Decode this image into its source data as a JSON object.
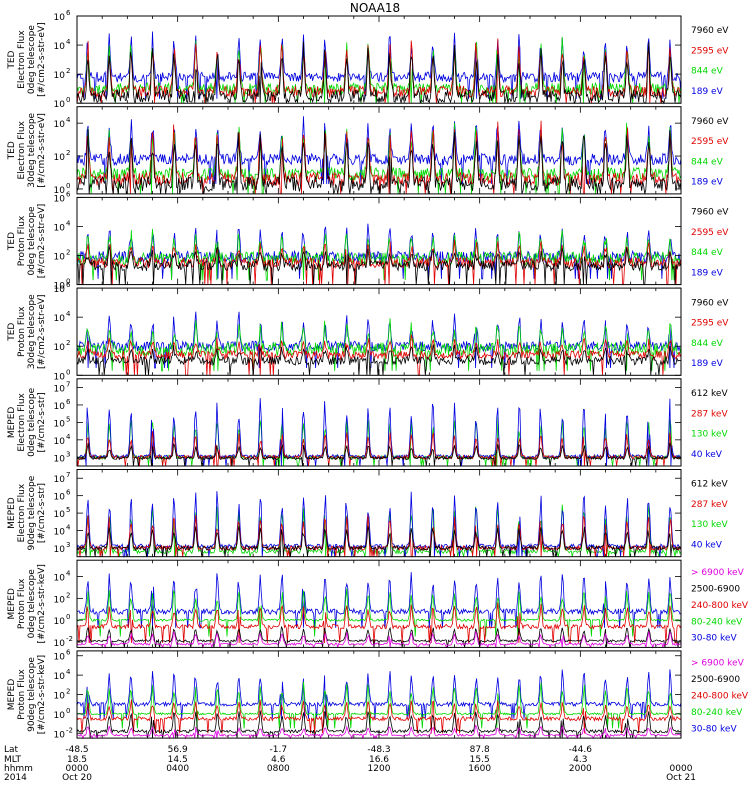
{
  "chart_data": {
    "type": "line",
    "title": "NOAA18",
    "panels": [
      {
        "ylabel_lines": [
          "TED",
          "Electron Flux",
          "0deg telescope",
          "[#/cm2-s-str-eV]"
        ],
        "yticks": [
          [
            "10",
            "0"
          ],
          [
            "10",
            "2"
          ],
          [
            "10",
            "4"
          ],
          [
            "10",
            "6"
          ]
        ],
        "ylog_range": [
          0,
          6
        ],
        "legend": [
          {
            "label": "7960 eV",
            "color": "#000000"
          },
          {
            "label": "2595 eV",
            "color": "#e00000"
          },
          {
            "label": "844 eV",
            "color": "#00d800"
          },
          {
            "label": "189 eV",
            "color": "#0000e0"
          }
        ],
        "series": [
          {
            "color": "#0000e0",
            "base": 1.8,
            "peak": 4.8,
            "noise": 0.35
          },
          {
            "color": "#00d800",
            "base": 1.0,
            "peak": 4.5,
            "noise": 0.4
          },
          {
            "color": "#e00000",
            "base": 0.8,
            "peak": 4.3,
            "noise": 0.4
          },
          {
            "color": "#000000",
            "base": 0.5,
            "peak": 4.0,
            "noise": 0.45
          }
        ]
      },
      {
        "ylabel_lines": [
          "TED",
          "Electron Flux",
          "30deg telescope",
          "[#/cm2-s-str-eV]"
        ],
        "yticks": [
          [
            "10",
            "0"
          ],
          [
            "10",
            "2"
          ],
          [
            "10",
            "4"
          ]
        ],
        "ylog_range": [
          -0.3,
          5
        ],
        "legend": [
          {
            "label": "7960 eV",
            "color": "#000000"
          },
          {
            "label": "2595 eV",
            "color": "#e00000"
          },
          {
            "label": "844 eV",
            "color": "#00d800"
          },
          {
            "label": "189 eV",
            "color": "#0000e0"
          }
        ],
        "series": [
          {
            "color": "#0000e0",
            "base": 1.8,
            "peak": 4.3,
            "noise": 0.35
          },
          {
            "color": "#00d800",
            "base": 0.9,
            "peak": 4.0,
            "noise": 0.4
          },
          {
            "color": "#e00000",
            "base": 0.6,
            "peak": 4.2,
            "noise": 0.4
          },
          {
            "color": "#000000",
            "base": 0.3,
            "peak": 3.8,
            "noise": 0.45
          }
        ]
      },
      {
        "ylabel_lines": [
          "TED",
          "Proton Flux",
          "0deg telescope",
          "[#/cm2-s-str-eV]"
        ],
        "yticks": [
          [
            "10",
            "0"
          ],
          [
            "10",
            "2"
          ],
          [
            "10",
            "4"
          ],
          [
            "10",
            "6"
          ]
        ],
        "ylog_range": [
          0,
          6
        ],
        "legend": [
          {
            "label": "7960 eV",
            "color": "#000000"
          },
          {
            "label": "2595 eV",
            "color": "#e00000"
          },
          {
            "label": "844 eV",
            "color": "#00d800"
          },
          {
            "label": "189 eV",
            "color": "#0000e0"
          }
        ],
        "series": [
          {
            "color": "#0000e0",
            "base": 1.9,
            "peak": 4.0,
            "noise": 0.4
          },
          {
            "color": "#00d800",
            "base": 1.8,
            "peak": 3.6,
            "noise": 0.45
          },
          {
            "color": "#e00000",
            "base": 1.5,
            "peak": 3.0,
            "noise": 0.35
          },
          {
            "color": "#000000",
            "base": 1.3,
            "peak": 2.5,
            "noise": 0.35
          }
        ]
      },
      {
        "ylabel_lines": [
          "TED",
          "Proton Flux",
          "30deg telescope",
          "[#/cm2-s-str-eV]"
        ],
        "yticks": [
          [
            "10",
            "0"
          ],
          [
            "10",
            "2"
          ],
          [
            "10",
            "4"
          ],
          [
            "10",
            "6"
          ]
        ],
        "ylog_range": [
          0,
          6
        ],
        "legend": [
          {
            "label": "7960 eV",
            "color": "#000000"
          },
          {
            "label": "2595 eV",
            "color": "#e00000"
          },
          {
            "label": "844 eV",
            "color": "#00d800"
          },
          {
            "label": "189 eV",
            "color": "#0000e0"
          }
        ],
        "series": [
          {
            "color": "#0000e0",
            "base": 2.0,
            "peak": 4.2,
            "noise": 0.35
          },
          {
            "color": "#00d800",
            "base": 1.8,
            "peak": 3.6,
            "noise": 0.45
          },
          {
            "color": "#e00000",
            "base": 1.4,
            "peak": 2.6,
            "noise": 0.3
          },
          {
            "color": "#000000",
            "base": 1.0,
            "peak": 2.0,
            "noise": 0.3
          }
        ]
      },
      {
        "ylabel_lines": [
          "MEPED",
          "Electron Flux",
          "0deg telescope",
          "[#/cm2-s-str]"
        ],
        "yticks": [
          [
            "10",
            "3"
          ],
          [
            "10",
            "4"
          ],
          [
            "10",
            "5"
          ],
          [
            "10",
            "6"
          ],
          [
            "10",
            "7"
          ]
        ],
        "ylog_range": [
          2.5,
          7.5
        ],
        "legend": [
          {
            "label": "612 keV",
            "color": "#000000"
          },
          {
            "label": "287 keV",
            "color": "#e00000"
          },
          {
            "label": "130 keV",
            "color": "#00d800"
          },
          {
            "label": "40 keV",
            "color": "#0000e0"
          }
        ],
        "series": [
          {
            "color": "#00d800",
            "base": 3.0,
            "peak": 5.4,
            "noise": 0.1
          },
          {
            "color": "#0000e0",
            "base": 3.05,
            "peak": 6.5,
            "noise": 0.1
          },
          {
            "color": "#e00000",
            "base": 3.0,
            "peak": 4.5,
            "noise": 0.1
          },
          {
            "color": "#000000",
            "base": 2.95,
            "peak": 3.8,
            "noise": 0.08
          }
        ]
      },
      {
        "ylabel_lines": [
          "MEPED",
          "Electron Flux",
          "90deg telescope",
          "[#/cm2-s-str]"
        ],
        "yticks": [
          [
            "10",
            "3"
          ],
          [
            "10",
            "4"
          ],
          [
            "10",
            "5"
          ],
          [
            "10",
            "6"
          ],
          [
            "10",
            "7"
          ]
        ],
        "ylog_range": [
          2.5,
          7.5
        ],
        "legend": [
          {
            "label": "612 keV",
            "color": "#000000"
          },
          {
            "label": "287 keV",
            "color": "#e00000"
          },
          {
            "label": "130 keV",
            "color": "#00d800"
          },
          {
            "label": "40 keV",
            "color": "#0000e0"
          }
        ],
        "series": [
          {
            "color": "#00d800",
            "base": 2.8,
            "peak": 5.6,
            "noise": 0.12
          },
          {
            "color": "#0000e0",
            "base": 3.1,
            "peak": 6.5,
            "noise": 0.12
          },
          {
            "color": "#e00000",
            "base": 3.0,
            "peak": 5.0,
            "noise": 0.12
          },
          {
            "color": "#000000",
            "base": 3.0,
            "peak": 4.3,
            "noise": 0.12
          }
        ]
      },
      {
        "ylabel_lines": [
          "MEPED",
          "Proton Flux",
          "0deg telescope",
          "[#/cm2-s-str-keV]"
        ],
        "yticks": [
          [
            "10",
            "-2"
          ],
          [
            "10",
            "0"
          ],
          [
            "10",
            "2"
          ],
          [
            "10",
            "4"
          ]
        ],
        "ylog_range": [
          -2.5,
          5.5
        ],
        "legend": [
          {
            "label": "> 6900 keV",
            "color": "#e000e0"
          },
          {
            "label": "2500-6900",
            "color": "#000000"
          },
          {
            "label": "240-800 keV",
            "color": "#e00000"
          },
          {
            "label": "80-240 keV",
            "color": "#00d800"
          },
          {
            "label": "30-80 keV",
            "color": "#0000e0"
          }
        ],
        "series": [
          {
            "color": "#0000e0",
            "base": 0.8,
            "peak": 4.5,
            "noise": 0.25
          },
          {
            "color": "#00d800",
            "base": 0.0,
            "peak": 3.0,
            "noise": 0.1
          },
          {
            "color": "#e00000",
            "base": -0.6,
            "peak": 1.6,
            "noise": 0.2
          },
          {
            "color": "#000000",
            "base": -1.9,
            "peak": -0.5,
            "noise": 0.1
          },
          {
            "color": "#e000e0",
            "base": -2.2,
            "peak": -1.0,
            "noise": 0.1
          }
        ]
      },
      {
        "ylabel_lines": [
          "MEPED",
          "Proton Flux",
          "90deg telescope",
          "[#/cm2-s-str-keV]"
        ],
        "yticks": [
          [
            "10",
            "-2"
          ],
          [
            "10",
            "0"
          ],
          [
            "10",
            "2"
          ],
          [
            "10",
            "4"
          ],
          [
            "10",
            "6"
          ]
        ],
        "ylog_range": [
          -2.5,
          6.5
        ],
        "legend": [
          {
            "label": "> 6900 keV",
            "color": "#e000e0"
          },
          {
            "label": "2500-6900",
            "color": "#000000"
          },
          {
            "label": "240-800 keV",
            "color": "#e00000"
          },
          {
            "label": "80-240 keV",
            "color": "#00d800"
          },
          {
            "label": "30-80 keV",
            "color": "#0000e0"
          }
        ],
        "series": [
          {
            "color": "#0000e0",
            "base": 1.0,
            "peak": 4.6,
            "noise": 0.2
          },
          {
            "color": "#00d800",
            "base": 0.0,
            "peak": 3.4,
            "noise": 0.1
          },
          {
            "color": "#e00000",
            "base": -0.5,
            "peak": 1.5,
            "noise": 0.2
          },
          {
            "color": "#000000",
            "base": -1.8,
            "peak": 0.5,
            "noise": 0.15
          },
          {
            "color": "#e000e0",
            "base": -2.2,
            "peak": -1.2,
            "noise": 0.1
          }
        ]
      }
    ],
    "xaxis": {
      "row_labels": [
        "Lat",
        "MLT",
        "hhmm",
        "2014"
      ],
      "ticks": [
        {
          "lat": "-48.5",
          "mlt": "18.5",
          "hhmm": "0000",
          "date": "Oct 20"
        },
        {
          "lat": "56.9",
          "mlt": "14.5",
          "hhmm": "0400",
          "date": ""
        },
        {
          "lat": "-1.7",
          "mlt": "4.6",
          "hhmm": "0800",
          "date": ""
        },
        {
          "lat": "-48.3",
          "mlt": "16.6",
          "hhmm": "1200",
          "date": ""
        },
        {
          "lat": "87.8",
          "mlt": "15.5",
          "hhmm": "1600",
          "date": ""
        },
        {
          "lat": "-44.6",
          "mlt": "4.3",
          "hhmm": "2000",
          "date": ""
        },
        {
          "lat": "",
          "mlt": "",
          "hhmm": "0000",
          "date": "Oct 21"
        }
      ],
      "range_hours": [
        0,
        24
      ]
    },
    "orbits": 14,
    "colors": {
      "background": "#ffffff",
      "axes": "#000000"
    }
  }
}
